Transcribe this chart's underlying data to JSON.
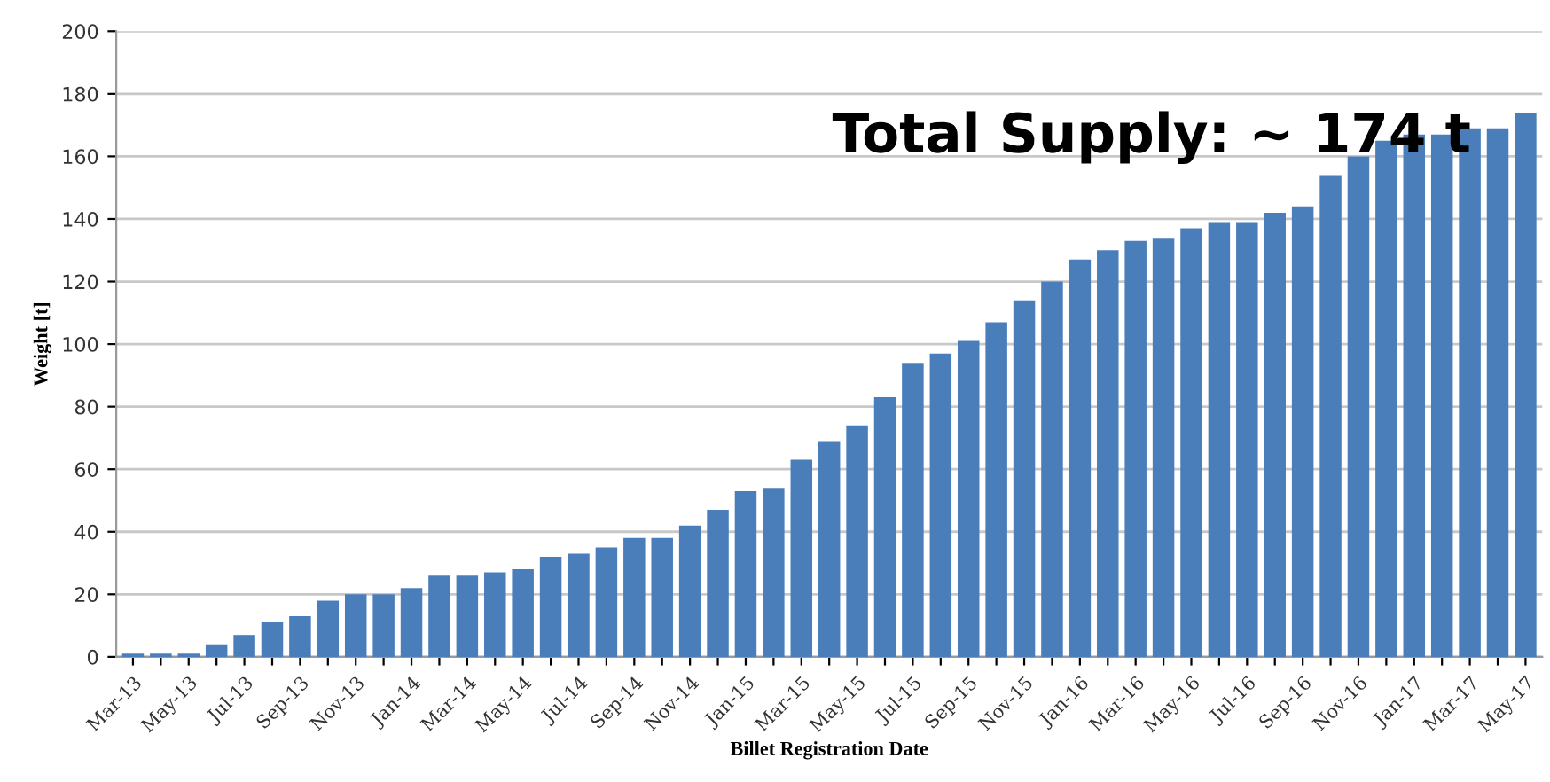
{
  "chart_data": {
    "type": "bar",
    "xlabel": "Billet Registration Date",
    "ylabel": "Weight [t]",
    "categories": [
      "Mar-13",
      null,
      "May-13",
      null,
      "Jul-13",
      null,
      "Sep-13",
      null,
      "Nov-13",
      null,
      "Jan-14",
      null,
      "Mar-14",
      null,
      "May-14",
      null,
      "Jul-14",
      null,
      "Sep-14",
      null,
      "Nov-14",
      null,
      "Jan-15",
      null,
      "Mar-15",
      null,
      "May-15",
      null,
      "Jul-15",
      null,
      "Sep-15",
      null,
      "Nov-15",
      null,
      "Jan-16",
      null,
      "Mar-16",
      null,
      "May-16",
      null,
      "Jul-16",
      null,
      "Sep-16",
      null,
      "Nov-16",
      null,
      "Jan-17",
      null,
      "Mar-17",
      null,
      "May-17"
    ],
    "values": [
      1,
      1,
      1,
      4,
      7,
      11,
      13,
      18,
      20,
      20,
      22,
      26,
      26,
      27,
      28,
      32,
      33,
      35,
      38,
      38,
      42,
      47,
      53,
      54,
      63,
      69,
      74,
      83,
      94,
      97,
      101,
      107,
      114,
      120,
      127,
      130,
      133,
      134,
      137,
      139,
      139,
      142,
      144,
      154,
      160,
      165,
      167,
      167,
      169,
      169,
      174
    ],
    "color": "#4a7ebb",
    "ylim": [
      0,
      200
    ],
    "yticks": [
      0,
      20,
      40,
      60,
      80,
      100,
      120,
      140,
      160,
      180,
      200
    ],
    "grid": "y",
    "annotations": [
      "Total Supply: ~ 174 t"
    ]
  }
}
